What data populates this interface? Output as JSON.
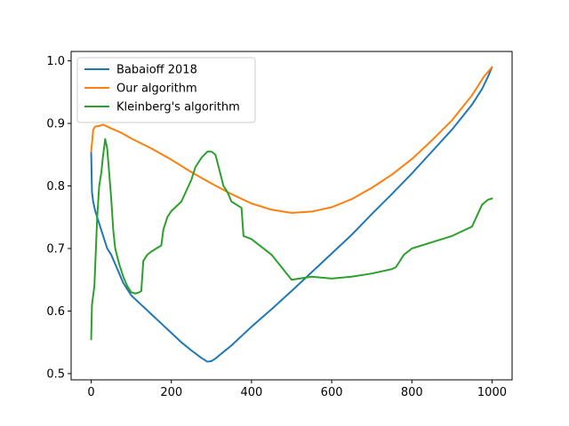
{
  "chart_data": {
    "type": "line",
    "title": "",
    "xlabel": "",
    "ylabel": "",
    "xlim": [
      -50,
      1050
    ],
    "ylim": [
      0.49,
      1.015
    ],
    "xticks": [
      0,
      200,
      400,
      600,
      800,
      1000
    ],
    "yticks": [
      0.5,
      0.6,
      0.7,
      0.8,
      0.9,
      1.0
    ],
    "xtick_labels": [
      "0",
      "200",
      "400",
      "600",
      "800",
      "1000"
    ],
    "ytick_labels": [
      "0.5",
      "0.6",
      "0.7",
      "0.8",
      "0.9",
      "1.0"
    ],
    "grid": false,
    "legend_position": "top-left",
    "series": [
      {
        "name": "Babaioff 2018",
        "color": "#1f77b4",
        "x": [
          0,
          2,
          5,
          10,
          20,
          30,
          40,
          50,
          60,
          70,
          80,
          90,
          100,
          125,
          150,
          175,
          200,
          225,
          250,
          275,
          290,
          300,
          310,
          325,
          350,
          375,
          400,
          450,
          500,
          550,
          600,
          650,
          700,
          750,
          800,
          850,
          900,
          950,
          975,
          990,
          1000
        ],
        "y": [
          0.855,
          0.79,
          0.775,
          0.76,
          0.74,
          0.72,
          0.7,
          0.69,
          0.675,
          0.66,
          0.645,
          0.635,
          0.625,
          0.61,
          0.595,
          0.58,
          0.565,
          0.55,
          0.537,
          0.525,
          0.519,
          0.52,
          0.524,
          0.532,
          0.545,
          0.56,
          0.575,
          0.603,
          0.632,
          0.662,
          0.692,
          0.722,
          0.755,
          0.787,
          0.82,
          0.855,
          0.89,
          0.93,
          0.955,
          0.975,
          0.99
        ]
      },
      {
        "name": "Our algorithm",
        "color": "#ff7f0e",
        "x": [
          0,
          3,
          5,
          10,
          20,
          30,
          40,
          50,
          75,
          100,
          150,
          200,
          250,
          300,
          350,
          400,
          450,
          500,
          550,
          600,
          650,
          700,
          750,
          800,
          850,
          900,
          950,
          980,
          1000
        ],
        "y": [
          0.855,
          0.875,
          0.89,
          0.895,
          0.896,
          0.898,
          0.895,
          0.892,
          0.885,
          0.876,
          0.86,
          0.842,
          0.822,
          0.804,
          0.787,
          0.772,
          0.762,
          0.757,
          0.759,
          0.766,
          0.779,
          0.797,
          0.818,
          0.843,
          0.873,
          0.905,
          0.945,
          0.975,
          0.99
        ]
      },
      {
        "name": "Kleinberg's algorithm",
        "color": "#2ca02c",
        "x": [
          0,
          2,
          4,
          6,
          8,
          10,
          15,
          20,
          25,
          30,
          35,
          40,
          45,
          50,
          55,
          60,
          70,
          80,
          90,
          100,
          110,
          120,
          125,
          130,
          140,
          150,
          175,
          180,
          190,
          200,
          225,
          250,
          260,
          275,
          290,
          300,
          310,
          330,
          340,
          350,
          375,
          380,
          400,
          450,
          500,
          550,
          600,
          650,
          700,
          750,
          760,
          780,
          800,
          850,
          900,
          950,
          975,
          990,
          1000
        ],
        "y": [
          0.555,
          0.61,
          0.62,
          0.63,
          0.64,
          0.67,
          0.75,
          0.8,
          0.82,
          0.85,
          0.875,
          0.86,
          0.82,
          0.78,
          0.73,
          0.7,
          0.675,
          0.655,
          0.64,
          0.63,
          0.628,
          0.63,
          0.632,
          0.68,
          0.69,
          0.695,
          0.705,
          0.73,
          0.75,
          0.76,
          0.775,
          0.81,
          0.83,
          0.845,
          0.855,
          0.855,
          0.85,
          0.8,
          0.79,
          0.775,
          0.765,
          0.72,
          0.715,
          0.69,
          0.65,
          0.655,
          0.652,
          0.655,
          0.66,
          0.667,
          0.67,
          0.69,
          0.7,
          0.71,
          0.72,
          0.735,
          0.77,
          0.778,
          0.78
        ]
      }
    ]
  }
}
